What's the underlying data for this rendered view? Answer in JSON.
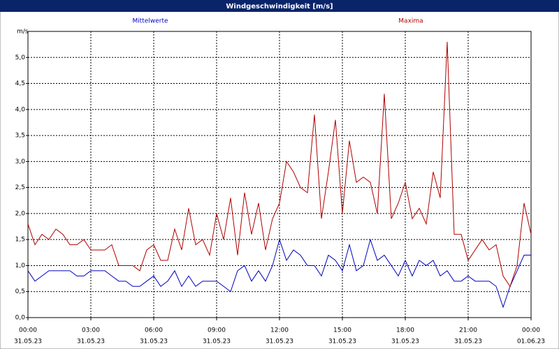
{
  "chart_data": {
    "type": "line",
    "title": "Windgeschwindigkeit [m/s]",
    "y_unit": "m/s",
    "x": [
      0,
      20,
      40,
      60,
      80,
      100,
      120,
      140,
      160,
      180,
      200,
      220,
      240,
      260,
      280,
      300,
      320,
      340,
      360,
      380,
      400,
      420,
      440,
      460,
      480,
      500,
      520,
      540,
      560,
      580,
      600,
      620,
      640,
      660,
      680,
      700,
      720,
      740,
      760,
      780,
      800,
      820,
      840,
      860,
      880,
      900,
      920,
      940,
      960,
      980,
      1000,
      1020,
      1040,
      1060,
      1080,
      1100,
      1120,
      1140,
      1160,
      1180,
      1200,
      1220,
      1240,
      1260,
      1280,
      1300,
      1320,
      1340,
      1360,
      1380,
      1400,
      1420,
      1440
    ],
    "series": [
      {
        "name": "Mittelwerte",
        "color": "#0000c0",
        "values": [
          0.9,
          0.7,
          0.8,
          0.9,
          0.9,
          0.9,
          0.9,
          0.8,
          0.8,
          0.9,
          0.9,
          0.9,
          0.8,
          0.7,
          0.7,
          0.6,
          0.6,
          0.7,
          0.8,
          0.6,
          0.7,
          0.9,
          0.6,
          0.8,
          0.6,
          0.7,
          0.7,
          0.7,
          0.6,
          0.5,
          0.9,
          1.0,
          0.7,
          0.9,
          0.7,
          1.0,
          1.5,
          1.1,
          1.3,
          1.2,
          1.0,
          1.0,
          0.8,
          1.2,
          1.1,
          0.9,
          1.4,
          0.9,
          1.0,
          1.5,
          1.1,
          1.2,
          1.0,
          0.8,
          1.1,
          0.8,
          1.1,
          1.0,
          1.1,
          0.8,
          0.9,
          0.7,
          0.7,
          0.8,
          0.7,
          0.7,
          0.7,
          0.6,
          0.2,
          0.6,
          0.9,
          1.2,
          1.2
        ]
      },
      {
        "name": "Maxima",
        "color": "#b00000",
        "values": [
          1.8,
          1.4,
          1.6,
          1.5,
          1.7,
          1.6,
          1.4,
          1.4,
          1.5,
          1.3,
          1.3,
          1.3,
          1.4,
          1.0,
          1.0,
          1.0,
          0.9,
          1.3,
          1.4,
          1.1,
          1.1,
          1.7,
          1.3,
          2.1,
          1.4,
          1.5,
          1.2,
          2.0,
          1.5,
          2.3,
          1.2,
          2.4,
          1.6,
          2.2,
          1.3,
          1.9,
          2.2,
          3.0,
          2.8,
          2.5,
          2.4,
          3.9,
          1.9,
          2.8,
          3.8,
          2.0,
          3.4,
          2.6,
          2.7,
          2.6,
          2.0,
          4.3,
          1.9,
          2.2,
          2.6,
          1.9,
          2.1,
          1.8,
          2.8,
          2.3,
          5.3,
          1.6,
          1.6,
          1.1,
          1.3,
          1.5,
          1.3,
          1.4,
          0.8,
          0.6,
          1.0,
          2.2,
          1.6
        ]
      }
    ],
    "xlim": [
      0,
      1440
    ],
    "xticks": [
      {
        "value": 0,
        "label": "00:00"
      },
      {
        "value": 180,
        "label": "03:00"
      },
      {
        "value": 360,
        "label": "06:00"
      },
      {
        "value": 540,
        "label": "09:00"
      },
      {
        "value": 720,
        "label": "12:00"
      },
      {
        "value": 900,
        "label": "15:00"
      },
      {
        "value": 1080,
        "label": "18:00"
      },
      {
        "value": 1260,
        "label": "21:00"
      },
      {
        "value": 1440,
        "label": "00:00"
      }
    ],
    "xtick_dates": [
      "31.05.23",
      "31.05.23",
      "31.05.23",
      "31.05.23",
      "31.05.23",
      "31.05.23",
      "31.05.23",
      "31.05.23",
      "01.06.23"
    ],
    "ylim": [
      0,
      5.5
    ],
    "yticks": [
      {
        "value": 0,
        "label": "0,0"
      },
      {
        "value": 0.5,
        "label": "0,5"
      },
      {
        "value": 1,
        "label": "1,0"
      },
      {
        "value": 1.5,
        "label": "1,5"
      },
      {
        "value": 2,
        "label": "2,0"
      },
      {
        "value": 2.5,
        "label": "2,5"
      },
      {
        "value": 3,
        "label": "3,0"
      },
      {
        "value": 3.5,
        "label": "3,5"
      },
      {
        "value": 4,
        "label": "4,0"
      },
      {
        "value": 4.5,
        "label": "4,5"
      },
      {
        "value": 5,
        "label": "5,0"
      }
    ],
    "grid": true
  }
}
